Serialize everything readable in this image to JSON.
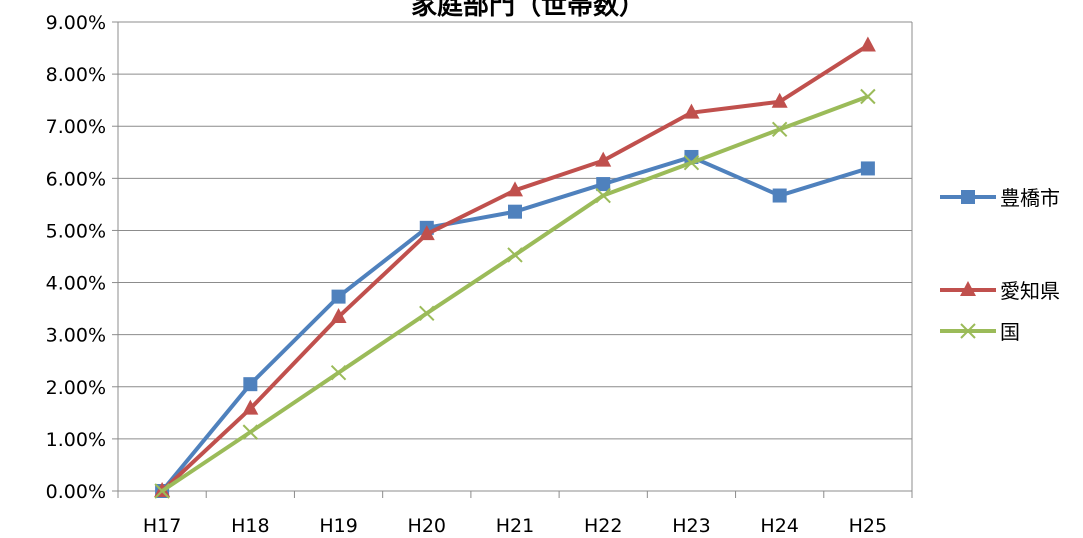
{
  "chart_data": {
    "type": "line",
    "title": "家庭部門（世帯数）",
    "xlabel": "",
    "ylabel": "",
    "categories": [
      "H17",
      "H18",
      "H19",
      "H20",
      "H21",
      "H22",
      "H23",
      "H24",
      "H25"
    ],
    "ylim": [
      0,
      0.09
    ],
    "y_ticks": [
      "0.00%",
      "1.00%",
      "2.00%",
      "3.00%",
      "4.00%",
      "5.00%",
      "6.00%",
      "7.00%",
      "8.00%",
      "9.00%"
    ],
    "grid": true,
    "legend": "right",
    "series": [
      {
        "name": "豊橋市",
        "color": "#4f81bd",
        "marker": "square",
        "values": [
          0.0,
          0.0205,
          0.0373,
          0.0505,
          0.0536,
          0.0589,
          0.0641,
          0.0567,
          0.0619
        ]
      },
      {
        "name": "愛知県",
        "color": "#c0504d",
        "marker": "triangle",
        "values": [
          0.0,
          0.0158,
          0.0334,
          0.0493,
          0.0577,
          0.0634,
          0.0726,
          0.0747,
          0.0855
        ]
      },
      {
        "name": "国",
        "color": "#9bbb59",
        "marker": "x",
        "values": [
          0.0,
          0.0113,
          0.0227,
          0.0341,
          0.0453,
          0.0567,
          0.063,
          0.0694,
          0.0757
        ]
      }
    ]
  }
}
